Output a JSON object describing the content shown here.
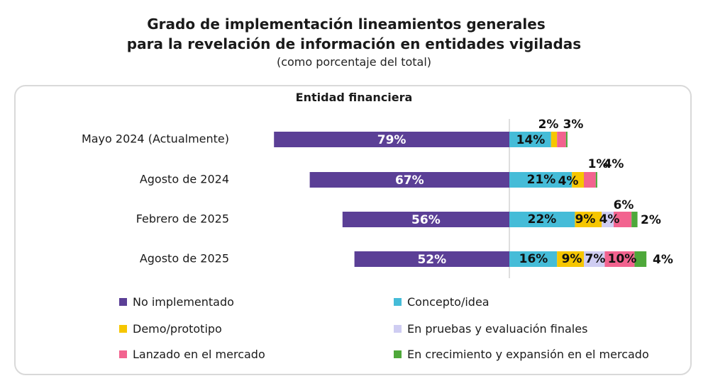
{
  "title_line1": "Grado de implementación lineamientos generales",
  "title_line2": "para la revelación de información en entidades vigiladas",
  "subtitle": "(como porcentaje del total)",
  "panel_title": "Entidad financiera",
  "chart_data": {
    "type": "bar",
    "orientation": "horizontal-diverging-stacked",
    "title": "Grado de implementación lineamientos generales para la revelación de información en entidades vigiladas",
    "subtitle": "(como porcentaje del total)",
    "panel": "Entidad financiera",
    "unit": "%",
    "categories": [
      "Mayo 2024 (Actualmente)",
      "Agosto de 2024",
      "Febrero de 2025",
      "Agosto de 2025"
    ],
    "series": [
      {
        "name": "No implementado",
        "color": "#5b3f96",
        "values": [
          79,
          67,
          56,
          52
        ],
        "labels": [
          "79%",
          "67%",
          "56%",
          "52%"
        ]
      },
      {
        "name": "Concepto/idea",
        "color": "#45bcd8",
        "values": [
          14,
          21,
          22,
          16
        ],
        "labels": [
          "14%",
          "21%",
          "22%",
          "16%"
        ]
      },
      {
        "name": "Demo/prototipo",
        "color": "#f6c600",
        "values": [
          2,
          4,
          9,
          9
        ],
        "labels": [
          "2%",
          "4%",
          "9%",
          "9%"
        ]
      },
      {
        "name": "En pruebas y evaluación finales",
        "color": "#cfcdf2",
        "values": [
          0,
          0,
          4,
          7
        ],
        "labels": [
          "",
          "",
          "4%",
          "7%"
        ]
      },
      {
        "name": "Lanzado en el mercado",
        "color": "#f2638f",
        "values": [
          3,
          4,
          6,
          10
        ],
        "labels": [
          "3%",
          "4%",
          "6%",
          "10%"
        ]
      },
      {
        "name": "En crecimiento y expansión en el mercado",
        "color": "#4ea83a",
        "values": [
          0.5,
          0.5,
          2,
          4
        ],
        "labels": [
          "",
          "",
          "2%",
          "4%"
        ]
      }
    ],
    "extra_labels": [
      "1%"
    ],
    "grid": false,
    "legend_position": "bottom"
  }
}
